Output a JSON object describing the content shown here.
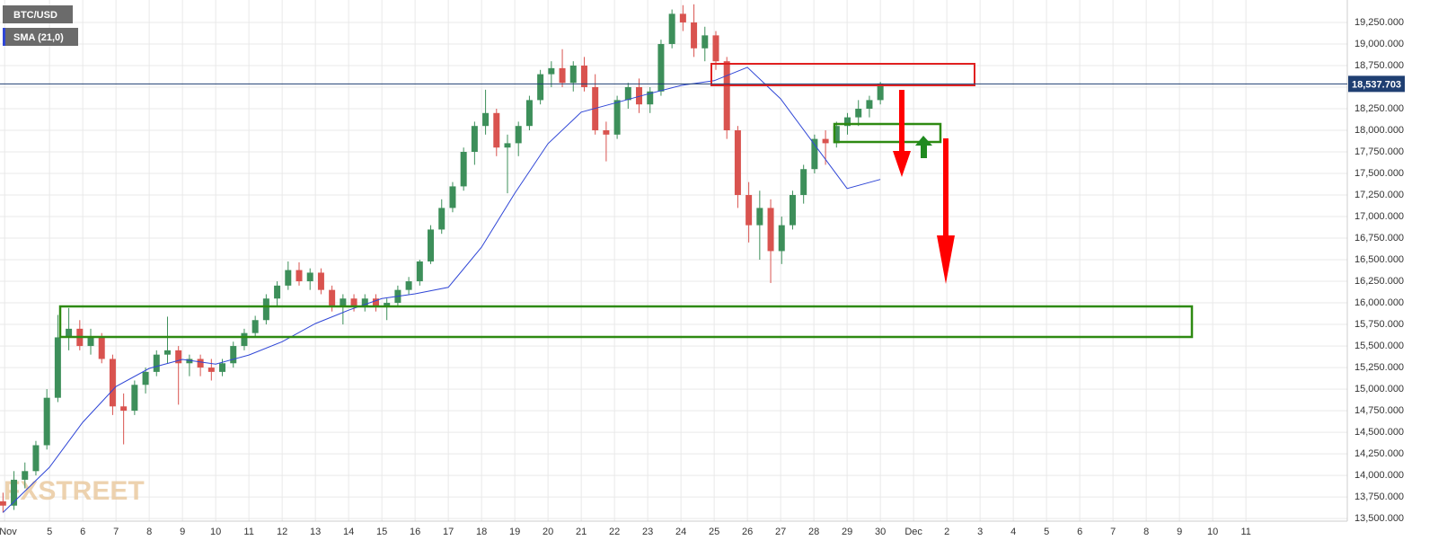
{
  "chart_data": {
    "type": "candlestick",
    "name": "BTC/USD",
    "up_color": "#3d8f5a",
    "down_color": "#d9534f",
    "x": [
      3.6,
      3.93,
      4.26,
      4.59,
      4.92,
      5.25,
      5.58,
      5.91,
      6.24,
      6.57,
      6.9,
      7.23,
      7.56,
      7.89,
      8.22,
      8.55,
      8.88,
      9.21,
      9.54,
      9.87,
      10.2,
      10.53,
      10.86,
      11.19,
      11.52,
      11.85,
      12.18,
      12.51,
      12.84,
      13.17,
      13.5,
      13.83,
      14.16,
      14.49,
      14.82,
      15.15,
      15.48,
      15.81,
      16.14,
      16.47,
      16.8,
      17.13,
      17.46,
      17.79,
      18.12,
      18.45,
      18.78,
      19.11,
      19.44,
      19.77,
      20.1,
      20.43,
      20.76,
      21.09,
      21.42,
      21.75,
      22.08,
      22.41,
      22.74,
      23.07,
      23.4,
      23.73,
      24.06,
      24.39,
      24.72,
      25.05,
      25.38,
      25.71,
      26.04,
      26.37,
      26.7,
      27.03,
      27.36,
      27.69,
      28.02,
      28.35,
      28.68,
      29.01,
      29.34,
      29.67,
      30.0
    ],
    "open": [
      13700,
      13650,
      13950,
      14050,
      14350,
      14900,
      15600,
      15700,
      15500,
      15600,
      15350,
      14800,
      14750,
      15050,
      15200,
      15400,
      15450,
      15300,
      15350,
      15250,
      15200,
      15300,
      15500,
      15650,
      15800,
      16050,
      16200,
      16380,
      16250,
      16350,
      16150,
      15950,
      16050,
      15950,
      16050,
      15950,
      16000,
      16150,
      16250,
      16480,
      16850,
      17100,
      17350,
      17750,
      18050,
      18200,
      17800,
      17850,
      18050,
      18350,
      18650,
      18720,
      18550,
      18750,
      18500,
      18000,
      17950,
      18350,
      18500,
      18300,
      18450,
      19000,
      19350,
      19250,
      18950,
      19100,
      18800,
      18000,
      17250,
      16900,
      17100,
      16600,
      16900,
      17250,
      17550,
      17900,
      17850,
      18050,
      18150,
      18250,
      18350
    ],
    "high": [
      13800,
      14050,
      14150,
      14400,
      15000,
      15860,
      15940,
      15800,
      15700,
      15650,
      15400,
      14950,
      15100,
      15250,
      15450,
      15840,
      15500,
      15400,
      15400,
      15350,
      15350,
      15550,
      15700,
      15850,
      16100,
      16250,
      16480,
      16470,
      16400,
      16400,
      16200,
      16100,
      16100,
      16100,
      16100,
      16050,
      16200,
      16300,
      16500,
      16900,
      17200,
      17400,
      17800,
      18100,
      18470,
      18250,
      17950,
      18100,
      18400,
      18700,
      18800,
      18940,
      18800,
      18850,
      18650,
      18100,
      18400,
      18550,
      18600,
      18500,
      19050,
      19400,
      19450,
      19460,
      19200,
      19150,
      18850,
      18050,
      17400,
      17300,
      17200,
      17000,
      17300,
      17600,
      17950,
      18000,
      18100,
      18200,
      18350,
      18400,
      18560
    ],
    "low": [
      13570,
      13600,
      13850,
      14000,
      14300,
      14850,
      15450,
      15450,
      15400,
      15300,
      14700,
      14360,
      14700,
      14950,
      15150,
      15300,
      14820,
      15150,
      15150,
      15100,
      15150,
      15250,
      15450,
      15600,
      15750,
      15950,
      16150,
      16200,
      16150,
      16100,
      15900,
      15750,
      15900,
      15900,
      15900,
      15800,
      15950,
      16100,
      16200,
      16450,
      16800,
      17050,
      17300,
      17600,
      17950,
      17700,
      17270,
      17700,
      18000,
      18300,
      18500,
      18500,
      18450,
      18450,
      17950,
      17640,
      17900,
      18250,
      18200,
      18200,
      18400,
      18950,
      19150,
      18850,
      18800,
      18700,
      17900,
      17100,
      16700,
      16500,
      16230,
      16450,
      16850,
      17150,
      17500,
      17600,
      17800,
      17950,
      18050,
      18150,
      18300
    ],
    "close": [
      13650,
      13950,
      14050,
      14350,
      14900,
      15600,
      15700,
      15500,
      15600,
      15350,
      14800,
      14750,
      15050,
      15200,
      15400,
      15450,
      15300,
      15350,
      15250,
      15200,
      15300,
      15500,
      15650,
      15800,
      16050,
      16200,
      16380,
      16250,
      16350,
      16150,
      15950,
      16050,
      15950,
      16050,
      15950,
      16000,
      16150,
      16250,
      16480,
      16850,
      17100,
      17350,
      17750,
      18050,
      18200,
      17800,
      17850,
      18050,
      18350,
      18650,
      18720,
      18550,
      18750,
      18500,
      18000,
      17950,
      18350,
      18500,
      18300,
      18450,
      19000,
      19350,
      19250,
      18950,
      19100,
      18800,
      18000,
      17250,
      16900,
      17100,
      16600,
      16900,
      17250,
      17550,
      17900,
      17850,
      18050,
      18150,
      18250,
      18350,
      18538
    ],
    "overlays": [
      {
        "name": "SMA (21,0)",
        "color": "#2f46d6",
        "x": [
          3.6,
          5,
          6,
          7,
          8,
          9,
          10,
          11,
          12,
          13,
          14,
          15,
          16,
          17,
          18,
          19,
          20,
          21,
          22,
          23,
          24,
          25,
          26,
          27,
          28,
          29,
          30
        ],
        "values": [
          13570,
          14095,
          14615,
          15030,
          15240,
          15345,
          15290,
          15395,
          15550,
          15760,
          15915,
          16050,
          16105,
          16180,
          16645,
          17270,
          17845,
          18210,
          18315,
          18420,
          18520,
          18575,
          18730,
          18365,
          17845,
          17325,
          17430
        ]
      }
    ],
    "last_price": {
      "value": 18537.703,
      "label": "18,537.703"
    },
    "watermark": "FXSTREET",
    "xlim": [
      3.51,
      44.05
    ],
    "xticks": [
      {
        "value": 3.65,
        "label": "Nov"
      },
      5,
      6,
      7,
      8,
      9,
      10,
      11,
      12,
      13,
      14,
      15,
      16,
      17,
      18,
      19,
      20,
      21,
      22,
      23,
      24,
      25,
      26,
      27,
      28,
      29,
      30,
      {
        "value": 31,
        "label": "Dec"
      },
      {
        "value": 32,
        "label": "2"
      },
      {
        "value": 33,
        "label": "3"
      },
      {
        "value": 34,
        "label": "4"
      },
      {
        "value": 35,
        "label": "5"
      },
      {
        "value": 36,
        "label": "6"
      },
      {
        "value": 37,
        "label": "7"
      },
      {
        "value": 38,
        "label": "8"
      },
      {
        "value": 39,
        "label": "9"
      },
      {
        "value": 40,
        "label": "10"
      },
      {
        "value": 41,
        "label": "11"
      }
    ],
    "ylim": [
      13470,
      19510
    ],
    "yticks": [
      {
        "value": 13500,
        "label": "13,500.000"
      },
      {
        "value": 13750,
        "label": "13,750.000"
      },
      {
        "value": 14000,
        "label": "14,000.000"
      },
      {
        "value": 14250,
        "label": "14,250.000"
      },
      {
        "value": 14500,
        "label": "14,500.000"
      },
      {
        "value": 14750,
        "label": "14,750.000"
      },
      {
        "value": 15000,
        "label": "15,000.000"
      },
      {
        "value": 15250,
        "label": "15,250.000"
      },
      {
        "value": 15500,
        "label": "15,500.000"
      },
      {
        "value": 15750,
        "label": "15,750.000"
      },
      {
        "value": 16000,
        "label": "16,000.000"
      },
      {
        "value": 16250,
        "label": "16,250.000"
      },
      {
        "value": 16500,
        "label": "16,500.000"
      },
      {
        "value": 16750,
        "label": "16,750.000"
      },
      {
        "value": 17000,
        "label": "17,000.000"
      },
      {
        "value": 17250,
        "label": "17,250.000"
      },
      {
        "value": 17500,
        "label": "17,500.000"
      },
      {
        "value": 17750,
        "label": "17,750.000"
      },
      {
        "value": 18000,
        "label": "18,000.000"
      },
      {
        "value": 18250,
        "label": "18,250.000"
      },
      {
        "value": 18500,
        "label": "18,500.000"
      },
      {
        "value": 18750,
        "label": "18,750.000"
      },
      {
        "value": 19000,
        "label": "19,000.000"
      },
      {
        "value": 19250,
        "label": "19,250.000"
      }
    ],
    "grid": true
  }
}
